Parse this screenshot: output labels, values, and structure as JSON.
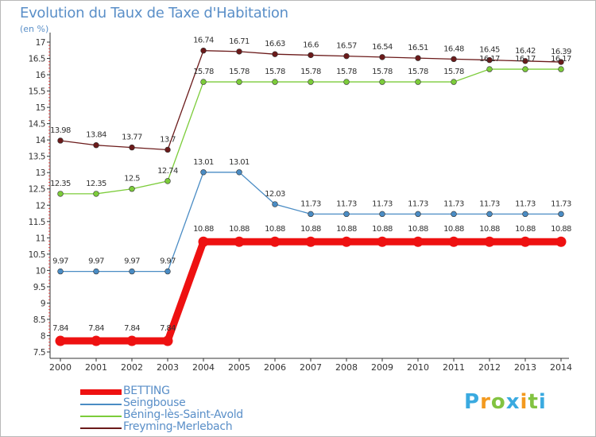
{
  "title": "Evolution du Taux de Taxe d'Habitation",
  "unit_label": "(en %)",
  "logo": {
    "text": "Proxiti",
    "colors": [
      "#3aaae0",
      "#f39a1f",
      "#82c341",
      "#3aaae0",
      "#f39a1f",
      "#82c341",
      "#3aaae0"
    ]
  },
  "chart_data": {
    "type": "line",
    "title": "Evolution du Taux de Taxe d'Habitation",
    "ylabel": "(en %)",
    "xlabel": "",
    "x": [
      "2000",
      "2001",
      "2002",
      "2003",
      "2004",
      "2005",
      "2006",
      "2007",
      "2008",
      "2009",
      "2010",
      "2011",
      "2012",
      "2013",
      "2014"
    ],
    "ylim": [
      7.5,
      17
    ],
    "yticks": [
      "7.5",
      "8",
      "8.5",
      "9",
      "9.5",
      "10",
      "10.5",
      "11",
      "11.5",
      "12",
      "12.5",
      "13",
      "13.5",
      "14",
      "14.5",
      "15",
      "15.5",
      "16",
      "16.5",
      "17"
    ],
    "grid": false,
    "legend_position": "bottom-left",
    "series": [
      {
        "name": "BETTING",
        "color": "#ee1111",
        "values": [
          7.84,
          7.84,
          7.84,
          7.84,
          10.88,
          10.88,
          10.88,
          10.88,
          10.88,
          10.88,
          10.88,
          10.88,
          10.88,
          10.88,
          10.88
        ],
        "labels": [
          "7.84",
          "7.84",
          "7.84",
          "7.84",
          "10.88",
          "10.88",
          "10.88",
          "10.88",
          "10.88",
          "10.88",
          "10.88",
          "10.88",
          "10.88",
          "10.88",
          "10.88"
        ]
      },
      {
        "name": "Seingbouse",
        "color": "#4a8cc4",
        "values": [
          9.97,
          9.97,
          9.97,
          9.97,
          13.01,
          13.01,
          12.03,
          11.73,
          11.73,
          11.73,
          11.73,
          11.73,
          11.73,
          11.73,
          11.73
        ],
        "labels": [
          "9.97",
          "9.97",
          "9.97",
          "9.97",
          "13.01",
          "13.01",
          "12.03",
          "11.73",
          "11.73",
          "11.73",
          "11.73",
          "11.73",
          "11.73",
          "11.73",
          "11.73"
        ]
      },
      {
        "name": "Béning-lès-Saint-Avold",
        "color": "#7ccc3a",
        "values": [
          12.35,
          12.35,
          12.5,
          12.74,
          15.78,
          15.78,
          15.78,
          15.78,
          15.78,
          15.78,
          15.78,
          15.78,
          16.17,
          16.17,
          16.17
        ],
        "labels": [
          "12.35",
          "12.35",
          "12.5",
          "12.74",
          "15.78",
          "15.78",
          "15.78",
          "15.78",
          "15.78",
          "15.78",
          "15.78",
          "15.78",
          "16.17",
          "16.17",
          "16.17"
        ]
      },
      {
        "name": "Freyming-Merlebach",
        "color": "#6b1a1a",
        "values": [
          13.98,
          13.84,
          13.77,
          13.7,
          16.74,
          16.71,
          16.63,
          16.6,
          16.57,
          16.54,
          16.51,
          16.48,
          16.45,
          16.42,
          16.39
        ],
        "labels": [
          "13.98",
          "13.84",
          "13.77",
          "13.7",
          "16.74",
          "16.71",
          "16.63",
          "16.6",
          "16.57",
          "16.54",
          "16.51",
          "16.48",
          "16.45",
          "16.42",
          "16.39"
        ]
      }
    ]
  }
}
